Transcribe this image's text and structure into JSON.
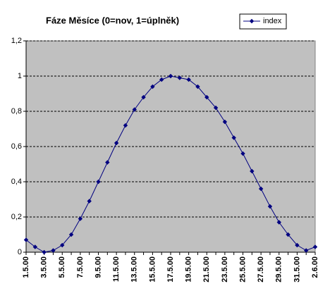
{
  "chart_data": {
    "type": "line",
    "title": "Fáze Měsíce (0=nov, 1=úplněk)",
    "categories": [
      "1.5.00",
      null,
      "3.5.00",
      null,
      "5.5.00",
      null,
      "7.5.00",
      null,
      "9.5.00",
      null,
      "11.5.00",
      null,
      "13.5.00",
      null,
      "15.5.00",
      null,
      "17.5.00",
      null,
      "19.5.00",
      null,
      "21.5.00",
      null,
      "23.5.00",
      null,
      "25.5.00",
      null,
      "27.5.00",
      null,
      "29.5.00",
      null,
      "31.5.00",
      null,
      "2.6.00"
    ],
    "series": [
      {
        "name": "index",
        "color": "#000080",
        "values": [
          0.07,
          0.03,
          0.0,
          0.01,
          0.04,
          0.1,
          0.19,
          0.29,
          0.4,
          0.51,
          0.62,
          0.72,
          0.81,
          0.88,
          0.94,
          0.98,
          1.0,
          0.99,
          0.98,
          0.94,
          0.88,
          0.82,
          0.74,
          0.65,
          0.56,
          0.46,
          0.36,
          0.26,
          0.17,
          0.1,
          0.04,
          0.01,
          0.03
        ]
      }
    ],
    "ylim": [
      0,
      1.2
    ],
    "yticks": [
      0,
      {
        "value": 0.2,
        "label": "0,2"
      },
      {
        "value": 0.4,
        "label": "0,4"
      },
      {
        "value": 0.6,
        "label": "0,6"
      },
      {
        "value": 0.8,
        "label": "0,8"
      },
      1,
      {
        "value": 1.2,
        "label": "1,2"
      }
    ],
    "grid": true,
    "legend": "top-right",
    "background": "#c0c0c0"
  }
}
